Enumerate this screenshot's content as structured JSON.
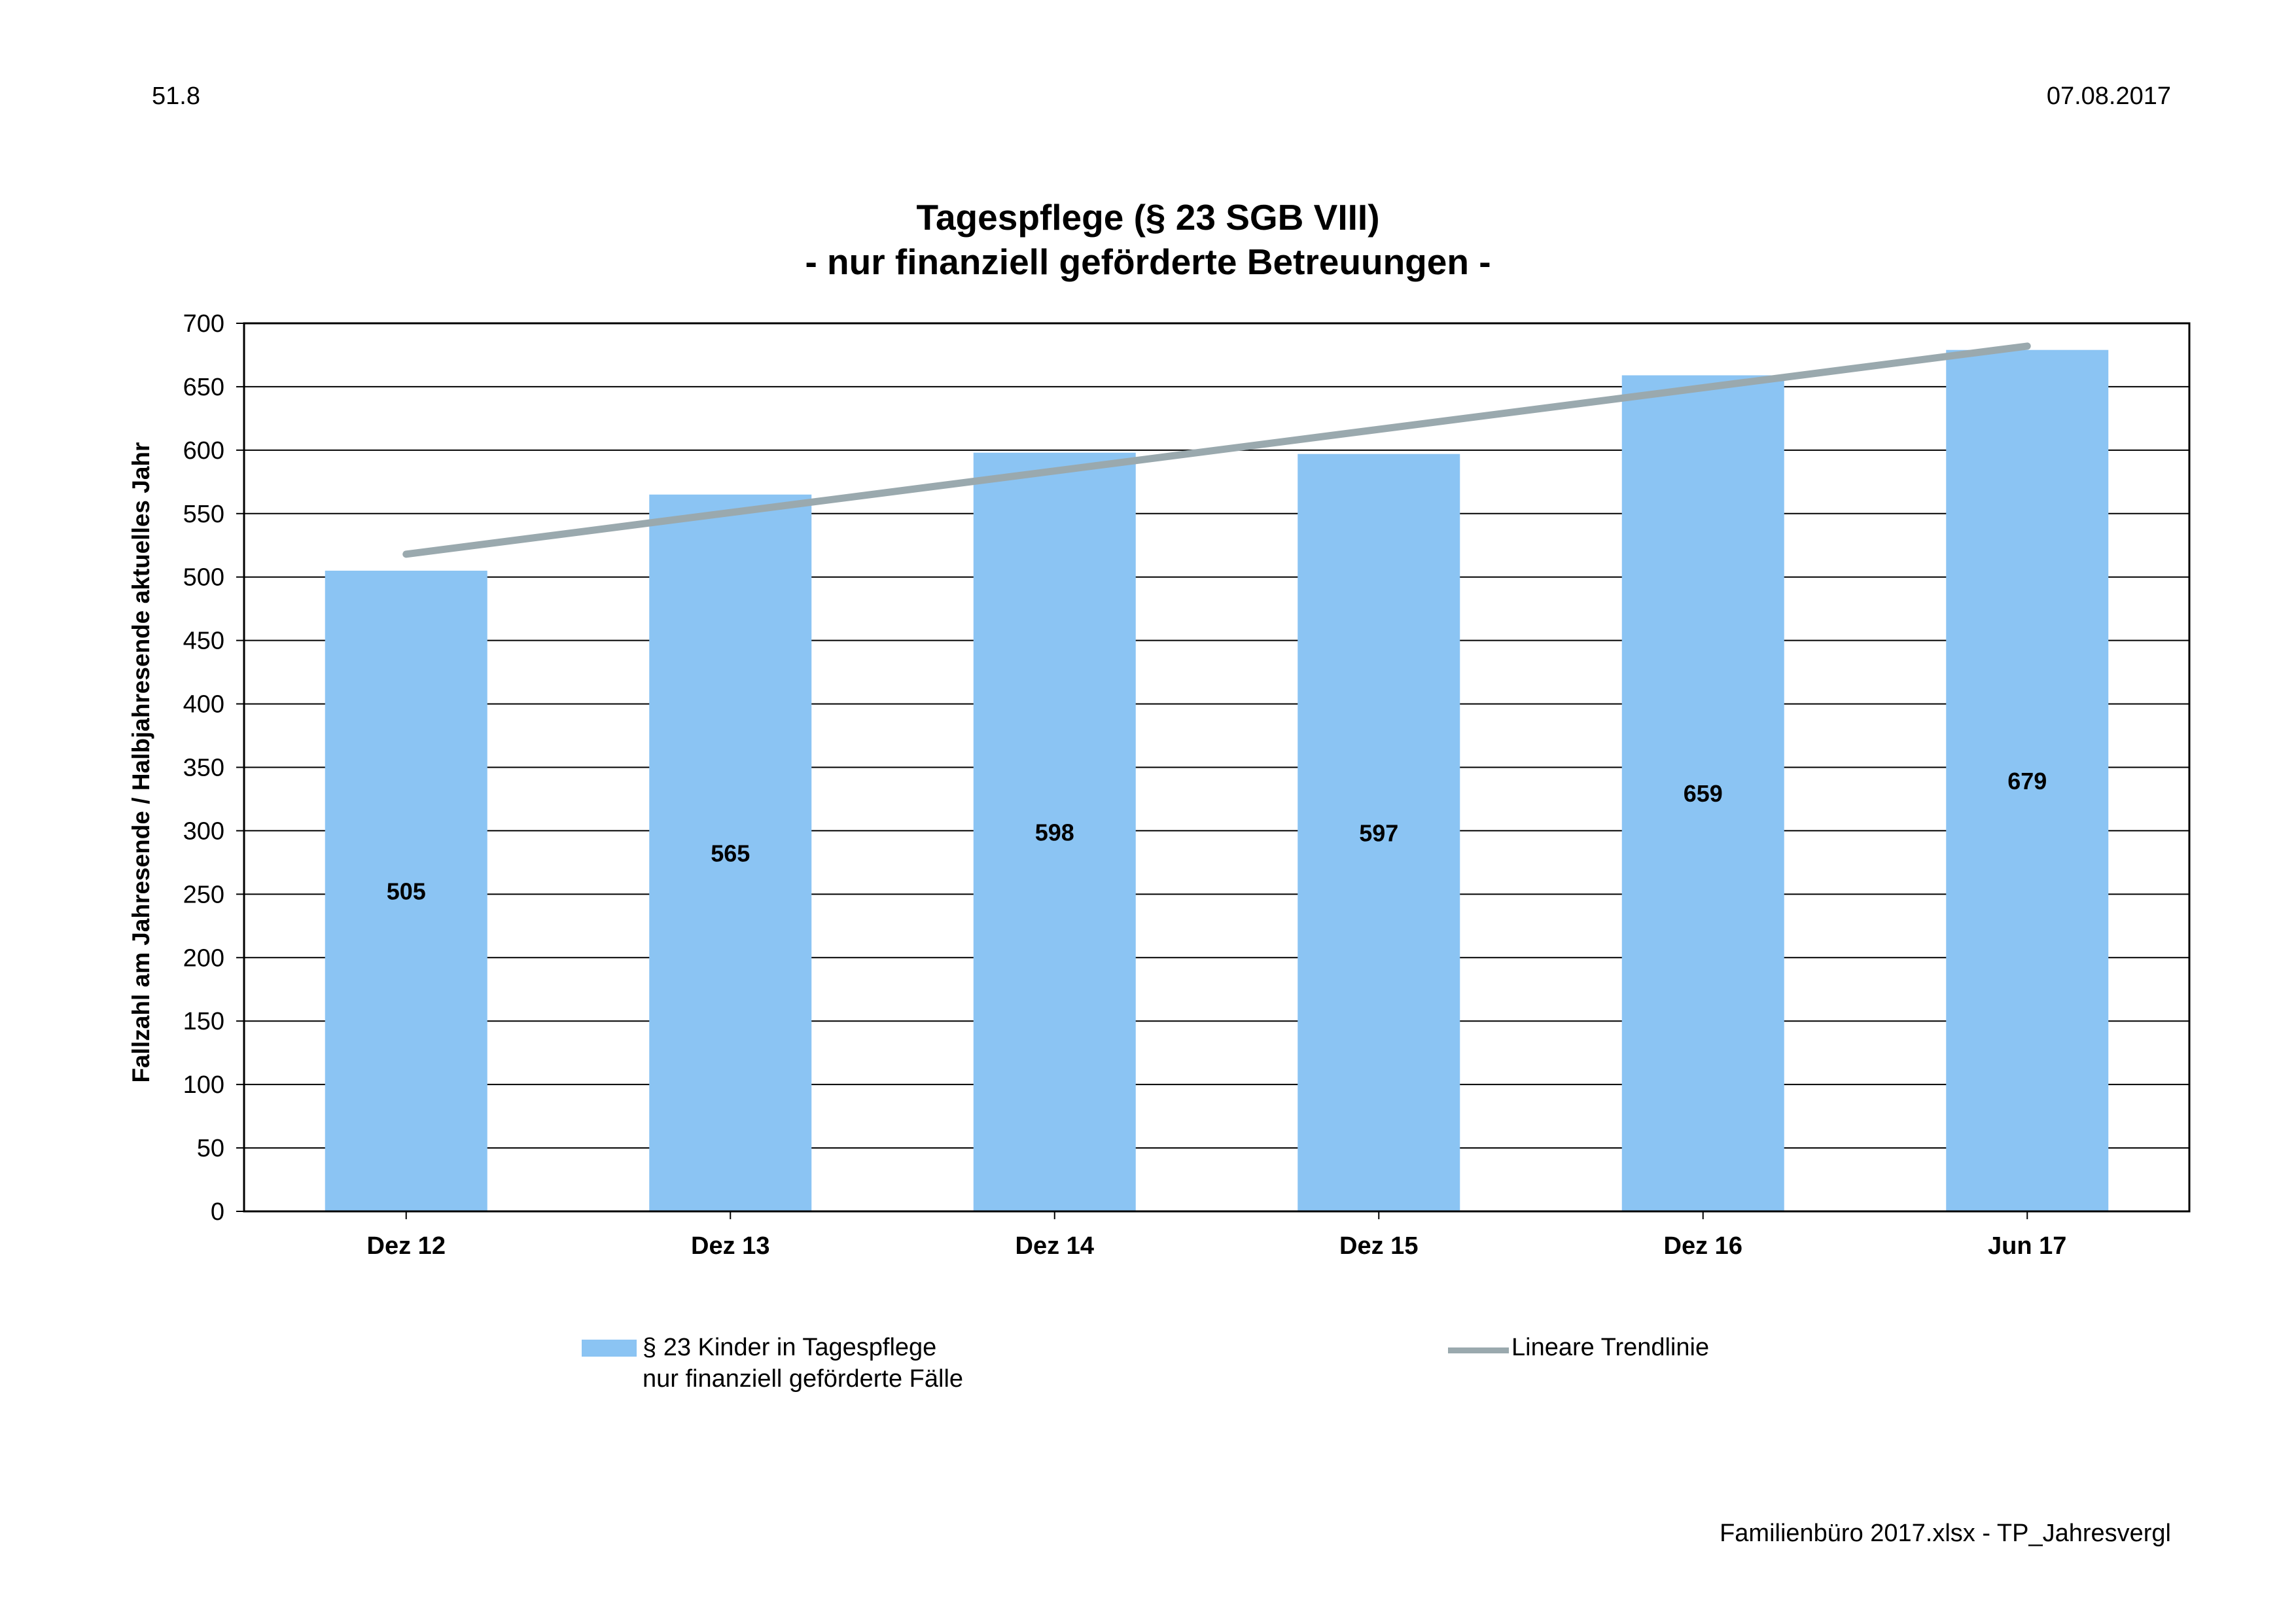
{
  "page": {
    "id": "51.8",
    "date": "07.08.2017",
    "footer": "Familienbüro 2017.xlsx - TP_Jahresvergl"
  },
  "chart_data": {
    "type": "bar",
    "title": "Tagespflege (§ 23 SGB VIII)",
    "subtitle": "- nur finanziell geförderte Betreuungen -",
    "xlabel": "",
    "ylabel": "Fallzahl am Jahresende / Halbjahresende aktuelles Jahr",
    "ylim": [
      0,
      700
    ],
    "yticks": [
      0,
      50,
      100,
      150,
      200,
      250,
      300,
      350,
      400,
      450,
      500,
      550,
      600,
      650,
      700
    ],
    "categories": [
      "Dez 12",
      "Dez 13",
      "Dez 14",
      "Dez 15",
      "Dez 16",
      "Jun 17"
    ],
    "series": [
      {
        "name_line1": "§ 23 Kinder in Tagespflege",
        "name_line2": "nur finanziell geförderte Fälle",
        "values": [
          505,
          565,
          598,
          597,
          659,
          679
        ],
        "color": "#8bc4f3"
      }
    ],
    "trendline": {
      "name": "Lineare Trendlinie",
      "start": 518,
      "end": 682,
      "color": "#9aa9ae"
    },
    "grid": true,
    "legend_position": "bottom"
  }
}
